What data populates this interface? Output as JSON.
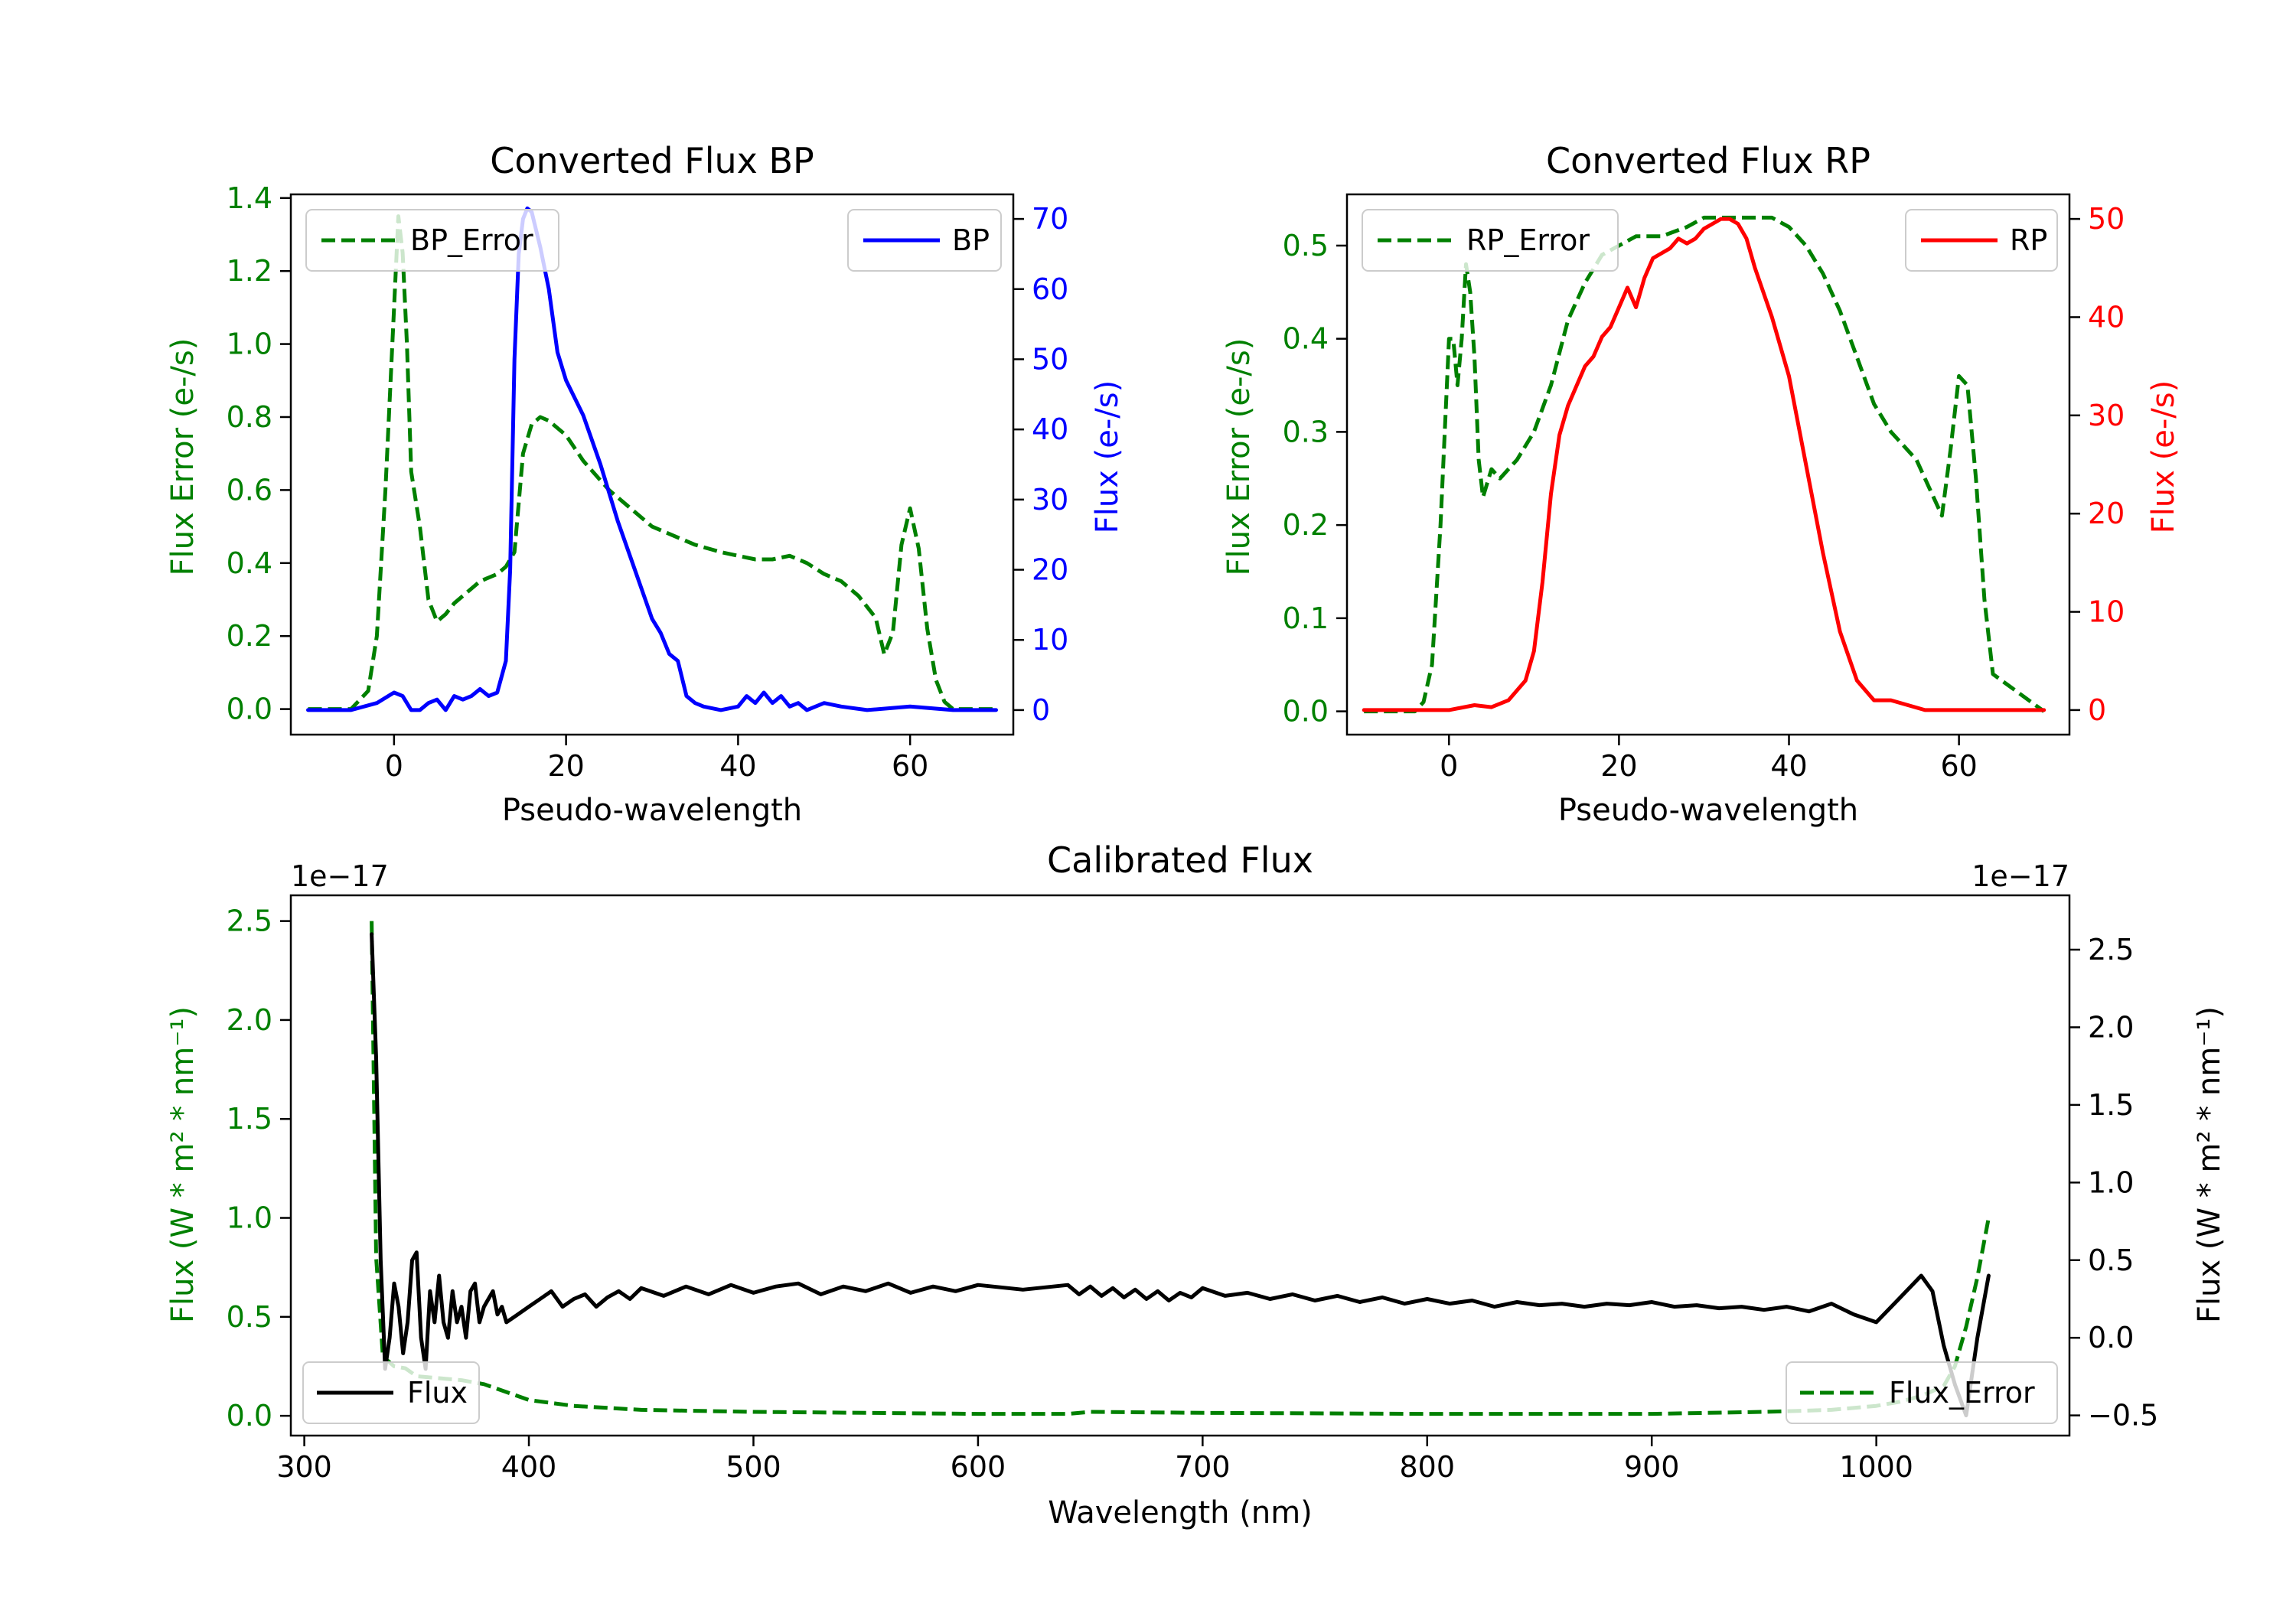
{
  "colors": {
    "error": "#008000",
    "bp": "#0000ff",
    "rp": "#ff0000",
    "flux": "#000000"
  },
  "chart_data": [
    {
      "id": "bp",
      "type": "line",
      "title": "Converted Flux BP",
      "xlabel": "Pseudo-wavelength",
      "ylabel_left": "Flux Error (e-/s)",
      "ylabel_right": "Flux (e-/s)",
      "xlim": [
        -12,
        72
      ],
      "ylim_left": [
        -0.07,
        1.41
      ],
      "ylim_right": [
        -3.5,
        73.5
      ],
      "xticks": [
        0,
        20,
        40,
        60
      ],
      "xtick_labels": [
        "0",
        "20",
        "40",
        "60"
      ],
      "yticks_left": [
        0.0,
        0.2,
        0.4,
        0.6,
        0.8,
        1.0,
        1.2,
        1.4
      ],
      "ytick_labels_left": [
        "0.0",
        "0.2",
        "0.4",
        "0.6",
        "0.8",
        "1.0",
        "1.2",
        "1.4"
      ],
      "yticks_right": [
        0,
        10,
        20,
        30,
        40,
        50,
        60,
        70
      ],
      "ytick_labels_right": [
        "0",
        "10",
        "20",
        "30",
        "40",
        "50",
        "60",
        "70"
      ],
      "legend_left": {
        "label": "BP_Error",
        "loc": "upper left"
      },
      "legend_right": {
        "label": "BP",
        "loc": "upper right"
      },
      "series": [
        {
          "name": "BP_Error",
          "axis": "left",
          "style": "dashed",
          "color": "#008000",
          "x": [
            -10,
            -5,
            -3,
            -2,
            -1,
            0,
            0.5,
            1,
            1.5,
            2,
            3,
            4,
            5,
            6,
            7,
            8,
            10,
            12,
            13,
            14,
            15,
            16,
            17,
            18,
            20,
            22,
            25,
            28,
            30,
            33,
            35,
            38,
            40,
            42,
            44,
            46,
            48,
            50,
            52,
            54,
            56,
            57,
            58,
            59,
            60,
            61,
            62,
            63,
            64,
            65,
            70
          ],
          "values": [
            0,
            0,
            0.05,
            0.2,
            0.6,
            1.1,
            1.35,
            1.25,
            1.0,
            0.65,
            0.5,
            0.3,
            0.24,
            0.26,
            0.29,
            0.31,
            0.35,
            0.37,
            0.39,
            0.43,
            0.7,
            0.78,
            0.8,
            0.79,
            0.75,
            0.68,
            0.6,
            0.54,
            0.5,
            0.47,
            0.45,
            0.43,
            0.42,
            0.41,
            0.41,
            0.42,
            0.4,
            0.37,
            0.35,
            0.31,
            0.25,
            0.15,
            0.21,
            0.45,
            0.55,
            0.44,
            0.22,
            0.08,
            0.02,
            0,
            0
          ]
        },
        {
          "name": "BP",
          "axis": "right",
          "style": "solid",
          "color": "#0000ff",
          "x": [
            -10,
            -5,
            -2,
            0,
            1,
            2,
            3,
            4,
            5,
            6,
            7,
            8,
            9,
            10,
            11,
            12,
            13,
            13.5,
            14,
            14.5,
            15,
            15.5,
            16,
            17,
            18,
            19,
            20,
            22,
            24,
            26,
            28,
            30,
            31,
            32,
            33,
            34,
            35,
            36,
            38,
            40,
            41,
            42,
            43,
            44,
            45,
            46,
            47,
            48,
            50,
            52,
            55,
            60,
            65,
            70
          ],
          "values": [
            0,
            0,
            1,
            2.5,
            2,
            0,
            0,
            1,
            1.5,
            0,
            2,
            1.5,
            2,
            3,
            2,
            2.5,
            7,
            20,
            50,
            65,
            70,
            71.5,
            71,
            66,
            60,
            51,
            47,
            42,
            35,
            27,
            20,
            13,
            11,
            8,
            7,
            2,
            1,
            0.5,
            0,
            0.5,
            2,
            1,
            2.5,
            1,
            2,
            0.5,
            1,
            0,
            1,
            0.5,
            0,
            0.5,
            0,
            0
          ]
        }
      ]
    },
    {
      "id": "rp",
      "type": "line",
      "title": "Converted Flux RP",
      "xlabel": "Pseudo-wavelength",
      "ylabel_left": "Flux Error (e-/s)",
      "ylabel_right": "Flux (e-/s)",
      "xlim": [
        -12,
        73
      ],
      "ylim_left": [
        -0.025,
        0.555
      ],
      "ylim_right": [
        -2.5,
        52.5
      ],
      "xticks": [
        0,
        20,
        40,
        60
      ],
      "xtick_labels": [
        "0",
        "20",
        "40",
        "60"
      ],
      "yticks_left": [
        0.0,
        0.1,
        0.2,
        0.3,
        0.4,
        0.5
      ],
      "ytick_labels_left": [
        "0.0",
        "0.1",
        "0.2",
        "0.3",
        "0.4",
        "0.5"
      ],
      "yticks_right": [
        0,
        10,
        20,
        30,
        40,
        50
      ],
      "ytick_labels_right": [
        "0",
        "10",
        "20",
        "30",
        "40",
        "50"
      ],
      "legend_left": {
        "label": "RP_Error",
        "loc": "upper left"
      },
      "legend_right": {
        "label": "RP",
        "loc": "upper right"
      },
      "series": [
        {
          "name": "RP_Error",
          "axis": "left",
          "style": "dashed",
          "color": "#008000",
          "x": [
            -10,
            -5,
            -4,
            -3,
            -2,
            -1,
            0,
            0.5,
            1,
            1.5,
            2,
            2.5,
            3,
            3.5,
            4,
            5,
            6,
            8,
            10,
            12,
            14,
            16,
            18,
            20,
            22,
            25,
            28,
            30,
            32,
            35,
            38,
            40,
            42,
            44,
            46,
            48,
            50,
            52,
            54,
            55,
            56,
            57,
            58,
            59,
            60,
            61,
            62,
            63,
            64,
            70
          ],
          "values": [
            0,
            0,
            0,
            0.01,
            0.05,
            0.2,
            0.4,
            0.4,
            0.35,
            0.4,
            0.48,
            0.45,
            0.38,
            0.27,
            0.23,
            0.26,
            0.25,
            0.27,
            0.3,
            0.35,
            0.42,
            0.46,
            0.49,
            0.5,
            0.51,
            0.51,
            0.52,
            0.53,
            0.53,
            0.53,
            0.53,
            0.52,
            0.5,
            0.47,
            0.43,
            0.38,
            0.33,
            0.3,
            0.28,
            0.27,
            0.25,
            0.23,
            0.21,
            0.28,
            0.36,
            0.35,
            0.25,
            0.12,
            0.04,
            0
          ]
        },
        {
          "name": "RP",
          "axis": "right",
          "style": "solid",
          "color": "#ff0000",
          "x": [
            -10,
            -5,
            0,
            3,
            5,
            7,
            9,
            10,
            11,
            12,
            13,
            14,
            15,
            16,
            17,
            18,
            19,
            20,
            21,
            22,
            23,
            24,
            25,
            26,
            27,
            28,
            29,
            30,
            31,
            32,
            33,
            34,
            35,
            36,
            38,
            40,
            42,
            44,
            46,
            48,
            50,
            52,
            54,
            56,
            58,
            60,
            65,
            70
          ],
          "values": [
            0,
            0,
            0,
            0.5,
            0.3,
            1,
            3,
            6,
            13,
            22,
            28,
            31,
            33,
            35,
            36,
            38,
            39,
            41,
            43,
            41,
            44,
            46,
            46.5,
            47,
            48,
            47.5,
            48,
            49,
            49.5,
            50,
            50,
            49.5,
            48,
            45,
            40,
            34,
            25,
            16,
            8,
            3,
            1,
            1,
            0.5,
            0,
            0,
            0,
            0,
            0
          ]
        }
      ]
    },
    {
      "id": "calibrated",
      "type": "line",
      "title": "Calibrated Flux",
      "xlabel": "Wavelength (nm)",
      "ylabel_left": "Flux (W * m² * nm⁻¹)",
      "ylabel_right": "Flux (W * m² * nm⁻¹)",
      "offset_left": "1e−17",
      "offset_right": "1e−17",
      "xlim": [
        294,
        1086
      ],
      "ylim_left": [
        -0.1,
        2.63
      ],
      "ylim_right": [
        -0.63,
        2.85
      ],
      "xticks": [
        300,
        400,
        500,
        600,
        700,
        800,
        900,
        1000
      ],
      "xtick_labels": [
        "300",
        "400",
        "500",
        "600",
        "700",
        "800",
        "900",
        "1000"
      ],
      "yticks_left": [
        0.0,
        0.5,
        1.0,
        1.5,
        2.0,
        2.5
      ],
      "ytick_labels_left": [
        "0.0",
        "0.5",
        "1.0",
        "1.5",
        "2.0",
        "2.5"
      ],
      "yticks_right": [
        -0.5,
        0.0,
        0.5,
        1.0,
        1.5,
        2.0,
        2.5
      ],
      "ytick_labels_right": [
        "−0.5",
        "0.0",
        "0.5",
        "1.0",
        "1.5",
        "2.0",
        "2.5"
      ],
      "legend_left": {
        "label": "Flux",
        "loc": "lower left"
      },
      "legend_right": {
        "label": "Flux_Error",
        "loc": "lower right"
      },
      "series": [
        {
          "name": "Flux_Error",
          "axis": "left",
          "style": "dashed",
          "color": "#008000",
          "x": [
            330,
            332,
            335,
            340,
            345,
            350,
            360,
            370,
            380,
            390,
            400,
            420,
            450,
            500,
            550,
            600,
            640,
            650,
            700,
            800,
            900,
            950,
            980,
            1000,
            1010,
            1020,
            1030,
            1035,
            1040,
            1045,
            1050
          ],
          "values": [
            2.5,
            0.8,
            0.3,
            0.25,
            0.24,
            0.2,
            0.19,
            0.18,
            0.16,
            0.12,
            0.08,
            0.05,
            0.03,
            0.02,
            0.015,
            0.01,
            0.01,
            0.02,
            0.015,
            0.01,
            0.01,
            0.02,
            0.03,
            0.05,
            0.07,
            0.1,
            0.15,
            0.25,
            0.45,
            0.7,
            1.0
          ]
        },
        {
          "name": "Flux",
          "axis": "right",
          "style": "solid",
          "color": "#000000",
          "x": [
            330,
            332,
            334,
            336,
            338,
            340,
            342,
            344,
            346,
            348,
            350,
            352,
            354,
            356,
            358,
            360,
            362,
            364,
            366,
            368,
            370,
            372,
            374,
            376,
            378,
            380,
            382,
            384,
            386,
            388,
            390,
            395,
            400,
            405,
            410,
            415,
            420,
            425,
            430,
            435,
            440,
            445,
            450,
            460,
            470,
            480,
            490,
            500,
            510,
            520,
            530,
            540,
            550,
            560,
            570,
            580,
            590,
            600,
            620,
            640,
            645,
            650,
            655,
            660,
            665,
            670,
            675,
            680,
            685,
            690,
            695,
            700,
            710,
            720,
            730,
            740,
            750,
            760,
            770,
            780,
            790,
            800,
            810,
            820,
            830,
            840,
            850,
            860,
            870,
            880,
            890,
            900,
            910,
            920,
            930,
            940,
            950,
            960,
            970,
            980,
            990,
            1000,
            1010,
            1020,
            1025,
            1030,
            1035,
            1040,
            1045,
            1050
          ],
          "values": [
            2.6,
            1.8,
            0.5,
            -0.2,
            0.0,
            0.35,
            0.2,
            -0.1,
            0.1,
            0.5,
            0.55,
            0.0,
            -0.2,
            0.3,
            0.1,
            0.4,
            0.1,
            0.0,
            0.3,
            0.1,
            0.2,
            0.0,
            0.3,
            0.35,
            0.1,
            0.2,
            0.25,
            0.3,
            0.15,
            0.2,
            0.1,
            0.15,
            0.2,
            0.25,
            0.3,
            0.2,
            0.25,
            0.28,
            0.2,
            0.26,
            0.3,
            0.25,
            0.32,
            0.27,
            0.33,
            0.28,
            0.34,
            0.29,
            0.33,
            0.35,
            0.28,
            0.33,
            0.3,
            0.35,
            0.29,
            0.33,
            0.3,
            0.34,
            0.31,
            0.34,
            0.28,
            0.33,
            0.27,
            0.32,
            0.26,
            0.31,
            0.25,
            0.3,
            0.24,
            0.29,
            0.26,
            0.32,
            0.27,
            0.29,
            0.25,
            0.28,
            0.24,
            0.27,
            0.23,
            0.26,
            0.22,
            0.25,
            0.22,
            0.24,
            0.2,
            0.23,
            0.21,
            0.22,
            0.2,
            0.22,
            0.21,
            0.23,
            0.2,
            0.21,
            0.19,
            0.2,
            0.18,
            0.2,
            0.17,
            0.22,
            0.15,
            0.1,
            0.25,
            0.4,
            0.3,
            -0.05,
            -0.3,
            -0.5,
            0.0,
            0.4
          ]
        }
      ]
    }
  ]
}
